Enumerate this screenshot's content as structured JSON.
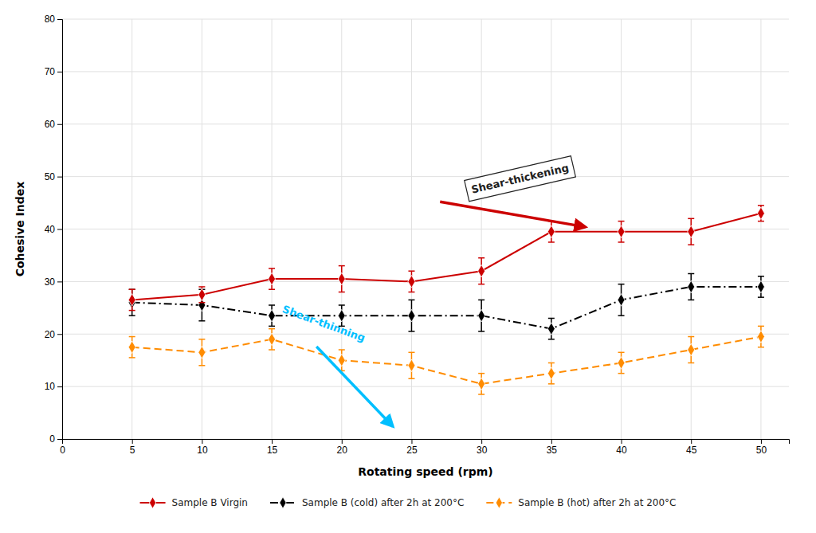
{
  "chart_data": {
    "type": "line",
    "xlabel": "Rotating speed (rpm)",
    "ylabel": "Cohesive Index",
    "x": [
      5,
      10,
      15,
      20,
      25,
      30,
      35,
      40,
      45,
      50
    ],
    "xlim": [
      0,
      52
    ],
    "ylim": [
      0,
      80
    ],
    "xticks": [
      0,
      5,
      10,
      15,
      20,
      25,
      30,
      35,
      40,
      45,
      50
    ],
    "yticks": [
      0,
      10,
      20,
      30,
      40,
      50,
      60,
      70,
      80
    ],
    "grid": true,
    "legend": "bottom",
    "series": [
      {
        "name": "Sample B Virgin",
        "color": "#CC0000",
        "marker": "diamond",
        "line_style": "solid",
        "values": [
          26.5,
          27.5,
          30.5,
          30.5,
          30.0,
          32.0,
          39.5,
          39.5,
          39.5,
          43.0
        ],
        "errors": [
          2.0,
          1.5,
          2.0,
          2.5,
          2.0,
          2.5,
          2.0,
          2.0,
          2.5,
          1.5
        ]
      },
      {
        "name": "Sample B (cold) after 2h at 200°C",
        "color": "#000000",
        "marker": "diamond",
        "line_style": "dashdot",
        "values": [
          26.0,
          25.5,
          23.5,
          23.5,
          23.5,
          23.5,
          21.0,
          26.5,
          29.0,
          29.0
        ],
        "errors": [
          2.5,
          3.0,
          2.0,
          2.0,
          3.0,
          3.0,
          2.0,
          3.0,
          2.5,
          2.0
        ]
      },
      {
        "name": "Sample B (hot) after 2h at 200°C",
        "color": "#FF8C00",
        "marker": "diamond",
        "line_style": "dashed",
        "values": [
          17.5,
          16.5,
          19.0,
          15.0,
          14.0,
          10.5,
          12.5,
          14.5,
          17.0,
          19.5
        ],
        "errors": [
          2.0,
          2.5,
          2.0,
          2.0,
          2.5,
          2.0,
          2.0,
          2.0,
          2.5,
          2.0
        ]
      }
    ],
    "annotations": [
      {
        "text": "Shear-thickening",
        "color": "#CC0000"
      },
      {
        "text": "Shear-thinning",
        "color": "#00BFFF"
      }
    ]
  }
}
